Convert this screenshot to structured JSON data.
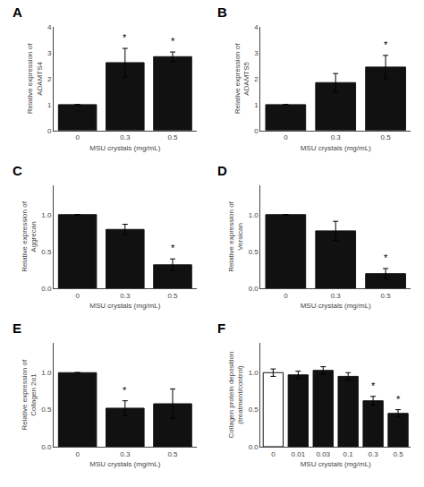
{
  "chart_data": [
    {
      "type": "bar",
      "title": "A",
      "ylabel": "Relative expression of\nADAMTS4",
      "xlabel": "MSU crystals (mg/mL)",
      "categories": [
        "0",
        "0.3",
        "0.5"
      ],
      "values": [
        1.0,
        2.62,
        2.85
      ],
      "errors": [
        0.0,
        0.55,
        0.18
      ],
      "annotations": [
        {
          "category": "0.3",
          "text": "*"
        },
        {
          "category": "0.5",
          "text": "*"
        }
      ],
      "color": "#111111",
      "ylim": [
        0,
        4
      ],
      "yticks": [
        0,
        1,
        2,
        3,
        4
      ],
      "grid": false
    },
    {
      "type": "bar",
      "title": "B",
      "ylabel": "Relative expression of\nADAMTS5",
      "xlabel": "MSU crystals (mg/mL)",
      "categories": [
        "0",
        "0.3",
        "0.5"
      ],
      "values": [
        1.0,
        1.85,
        2.45
      ],
      "errors": [
        0.0,
        0.35,
        0.45
      ],
      "annotations": [
        {
          "category": "0.5",
          "text": "*"
        }
      ],
      "color": "#111111",
      "ylim": [
        0,
        4
      ],
      "yticks": [
        0,
        1,
        2,
        3,
        4
      ],
      "grid": false
    },
    {
      "type": "bar",
      "title": "C",
      "ylabel": "Relative expression of\nAggrecan",
      "xlabel": "MSU crystals (mg/mL)",
      "categories": [
        "0",
        "0.3",
        "0.5"
      ],
      "values": [
        1.0,
        0.8,
        0.32
      ],
      "errors": [
        0.0,
        0.07,
        0.08
      ],
      "annotations": [
        {
          "category": "0.5",
          "text": "*"
        }
      ],
      "color": "#111111",
      "ylim": [
        0,
        1.4
      ],
      "yticks": [
        {
          "value": 0,
          "label": "0.0"
        },
        {
          "value": 0.5,
          "label": "0.5"
        },
        {
          "value": 1,
          "label": "1.0"
        }
      ],
      "grid": false
    },
    {
      "type": "bar",
      "title": "D",
      "ylabel": "Relative expression of\nVersican",
      "xlabel": "MSU crystals (mg/mL)",
      "categories": [
        "0",
        "0.3",
        "0.5"
      ],
      "values": [
        1.0,
        0.78,
        0.2
      ],
      "errors": [
        0.0,
        0.13,
        0.07
      ],
      "annotations": [
        {
          "category": "0.5",
          "text": "*"
        }
      ],
      "color": "#111111",
      "ylim": [
        0,
        1.4
      ],
      "yticks": [
        {
          "value": 0,
          "label": "0.0"
        },
        {
          "value": 0.5,
          "label": "0.5"
        },
        {
          "value": 1,
          "label": "1.0"
        }
      ],
      "grid": false
    },
    {
      "type": "bar",
      "title": "E",
      "ylabel": "Relative expression of\nCollagen 2α1",
      "xlabel": "MSU crystals (mg/mL)",
      "categories": [
        "0",
        "0.3",
        "0.5"
      ],
      "values": [
        1.0,
        0.52,
        0.58
      ],
      "errors": [
        0.0,
        0.1,
        0.2
      ],
      "annotations": [
        {
          "category": "0.3",
          "text": "*"
        }
      ],
      "color": "#111111",
      "ylim": [
        0,
        1.4
      ],
      "yticks": [
        {
          "value": 0,
          "label": "0.0"
        },
        {
          "value": 0.5,
          "label": "0.5"
        },
        {
          "value": 1,
          "label": "1.0"
        }
      ],
      "grid": false
    },
    {
      "type": "bar",
      "title": "F",
      "ylabel": "Collagen protein deposition\n(treatment/control)",
      "xlabel": "MSU crystals (mg/mL)",
      "categories": [
        "0",
        "0.01",
        "0.03",
        "0.1",
        "0.3",
        "0.5"
      ],
      "values": [
        1.0,
        0.97,
        1.03,
        0.95,
        0.62,
        0.45
      ],
      "errors": [
        0.05,
        0.05,
        0.05,
        0.05,
        0.06,
        0.05
      ],
      "annotations": [
        {
          "category": "0.3",
          "text": "*"
        },
        {
          "category": "0.5",
          "text": "*"
        }
      ],
      "color": "#111111",
      "colors": [
        "#ffffff",
        "#111111",
        "#111111",
        "#111111",
        "#111111",
        "#111111"
      ],
      "ylim": [
        0,
        1.4
      ],
      "yticks": [
        {
          "value": 0,
          "label": "0.0"
        },
        {
          "value": 0.5,
          "label": "0.5"
        },
        {
          "value": 1,
          "label": "1.0"
        }
      ],
      "grid": false
    }
  ]
}
